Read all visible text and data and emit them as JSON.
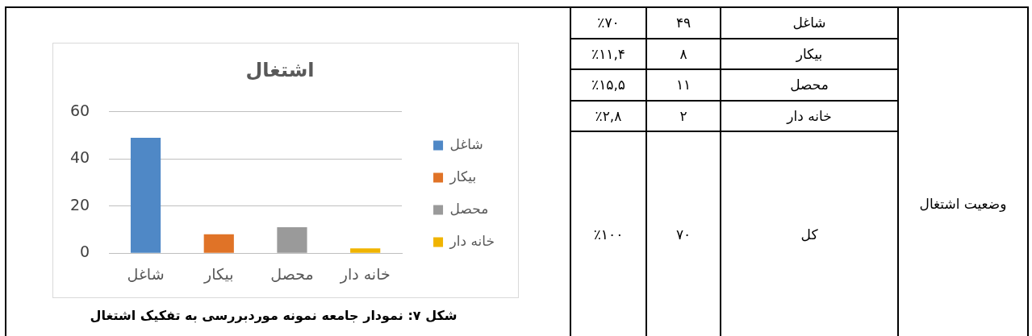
{
  "chart_data": [
    {
      "type": "bar",
      "title": "اشتغال",
      "categories": [
        "شاغل",
        "بیکار",
        "محصل",
        "خانه دار"
      ],
      "series": [
        {
          "name": "شاغل",
          "color": "#4f88c6",
          "values": [
            49,
            null,
            null,
            null
          ]
        },
        {
          "name": "بیکار",
          "color": "#e07327",
          "values": [
            null,
            8,
            null,
            null
          ]
        },
        {
          "name": "محصل",
          "color": "#9a9a9a",
          "values": [
            null,
            null,
            11,
            null
          ]
        },
        {
          "name": "خانه دار",
          "color": "#f0b400",
          "values": [
            null,
            null,
            null,
            2
          ]
        }
      ],
      "ylim": [
        0,
        60
      ],
      "yticks": [
        0,
        20,
        40,
        60
      ],
      "grid": "y",
      "legend": "right",
      "annotations": [
        "شکل ۷: نمودار جامعه نمونه موردبررسی به تفکیک اشتغال"
      ]
    },
    {
      "type": "other",
      "title": "وضعیت اشتغال",
      "categories": [
        "شاغل",
        "بیکار",
        "محصل",
        "خانه دار",
        "کل"
      ],
      "series": [
        {
          "values": [
            49,
            8,
            11,
            2,
            70
          ],
          "value_labels": [
            "۴۹",
            "۸",
            "۱۱",
            "۲",
            "۷۰"
          ]
        },
        {
          "values": [
            70,
            11.4,
            15.5,
            2.8,
            100
          ],
          "value_labels": [
            "٪۷۰",
            "٪۱۱,۴",
            "٪۱۵,۵",
            "٪۲,۸",
            "٪۱۰۰"
          ]
        }
      ]
    }
  ]
}
